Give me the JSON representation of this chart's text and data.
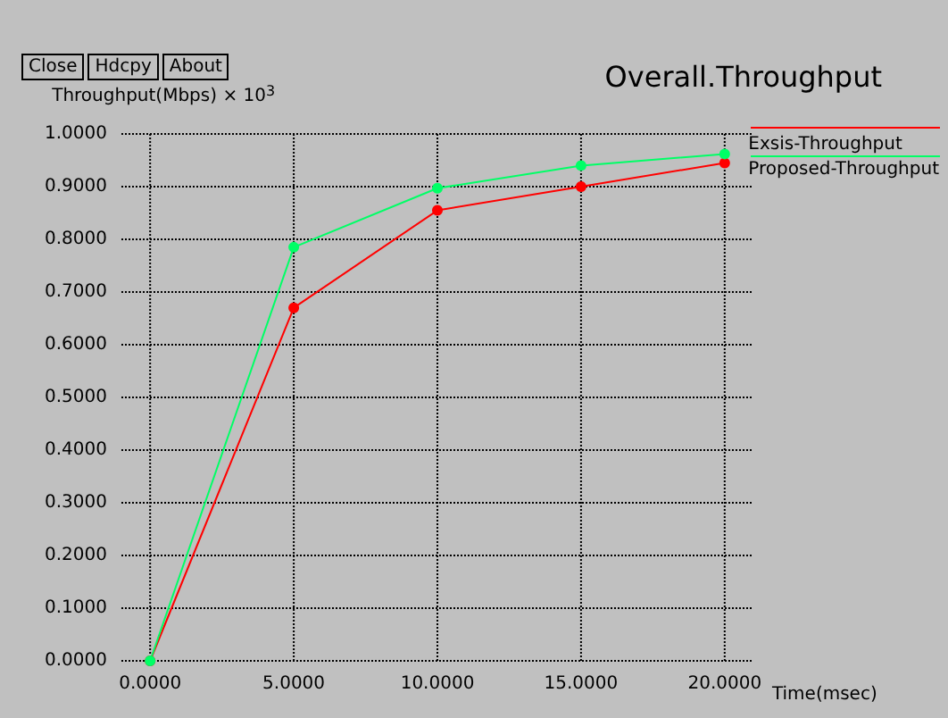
{
  "chart_data": {
    "type": "line",
    "title": "Overall.Throughput",
    "xlabel": "Time(msec)",
    "ylabel": "Throughput(Mbps) × 10$^{3}$",
    "annotations": [
      "Close",
      "Hdcpy",
      "About"
    ],
    "x": [
      0,
      5,
      10,
      15,
      20
    ],
    "series": [
      {
        "name": "Exsis-Throughput",
        "color": "#ff0000",
        "values": [
          0,
          0.67,
          0.855,
          0.9,
          0.945
        ]
      },
      {
        "name": "Proposed-Throughput",
        "color": "#00ff66",
        "values": [
          0,
          0.785,
          0.897,
          0.94,
          0.962
        ]
      }
    ],
    "xlim": [
      -1,
      21
    ],
    "ylim": [
      0,
      1
    ],
    "xticks": [
      {
        "value": 0,
        "label": "0.0000"
      },
      {
        "value": 5,
        "label": "5.0000"
      },
      {
        "value": 10,
        "label": "10.0000"
      },
      {
        "value": 15,
        "label": "15.0000"
      },
      {
        "value": 20,
        "label": "20.0000"
      }
    ],
    "yticks": [
      {
        "value": 0,
        "label": "0.0000"
      },
      {
        "value": 0.1,
        "label": "0.1000"
      },
      {
        "value": 0.2,
        "label": "0.2000"
      },
      {
        "value": 0.3,
        "label": "0.3000"
      },
      {
        "value": 0.4,
        "label": "0.4000"
      },
      {
        "value": 0.5,
        "label": "0.5000"
      },
      {
        "value": 0.6,
        "label": "0.6000"
      },
      {
        "value": 0.7,
        "label": "0.7000"
      },
      {
        "value": 0.8,
        "label": "0.8000"
      },
      {
        "value": 0.9,
        "label": "0.9000"
      },
      {
        "value": 1,
        "label": "1.0000"
      }
    ],
    "grid": true,
    "legend": "top right",
    "marker": "circle",
    "line_style": "solid"
  }
}
